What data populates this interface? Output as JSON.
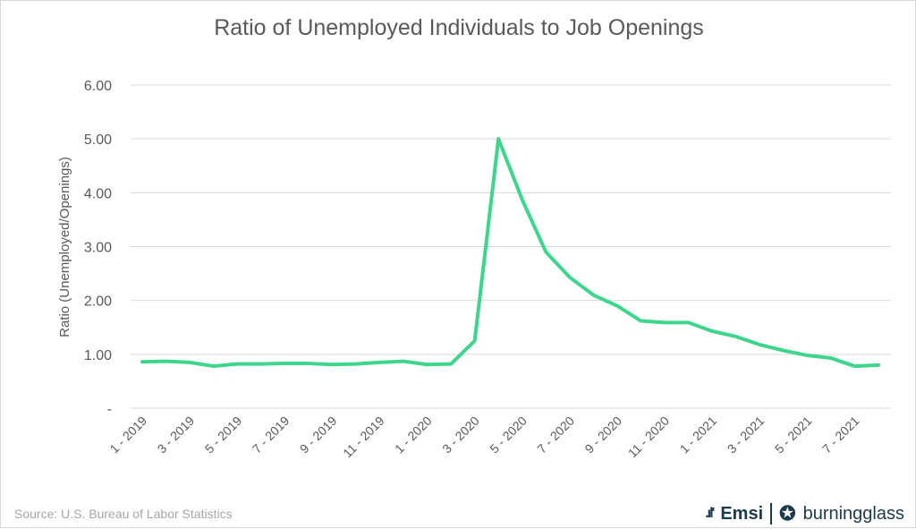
{
  "chart_data": {
    "type": "line",
    "title": "Ratio of Unemployed Individuals to Job Openings",
    "xlabel": "",
    "ylabel": "Ratio (Unemployed/Openings)",
    "ylim": [
      0,
      6
    ],
    "yticks": [
      "-",
      "1.00",
      "2.00",
      "3.00",
      "4.00",
      "5.00",
      "6.00"
    ],
    "grid": true,
    "x": [
      "1 - 2019",
      "2 - 2019",
      "3 - 2019",
      "4 - 2019",
      "5 - 2019",
      "6 - 2019",
      "7 - 2019",
      "8 - 2019",
      "9 - 2019",
      "10 - 2019",
      "11 - 2019",
      "12 - 2019",
      "1 - 2020",
      "2 - 2020",
      "3 - 2020",
      "4 - 2020",
      "5 - 2020",
      "6 - 2020",
      "7 - 2020",
      "8 - 2020",
      "9 - 2020",
      "10 - 2020",
      "11 - 2020",
      "12 - 2020",
      "1 - 2021",
      "2 - 2021",
      "3 - 2021",
      "4 - 2021",
      "5 - 2021",
      "6 - 2021",
      "7 - 2021",
      "8 - 2021"
    ],
    "xticks_shown": [
      "1 - 2019",
      "3 - 2019",
      "5 - 2019",
      "7 - 2019",
      "9 - 2019",
      "11 - 2019",
      "1 - 2020",
      "3 - 2020",
      "5 - 2020",
      "7 - 2020",
      "9 - 2020",
      "11 - 2020",
      "1 - 2021",
      "3 - 2021",
      "5 - 2021",
      "7 - 2021"
    ],
    "series": [
      {
        "name": "Ratio",
        "color": "#3dd68c",
        "values": [
          0.86,
          0.87,
          0.85,
          0.78,
          0.82,
          0.82,
          0.83,
          0.83,
          0.81,
          0.82,
          0.85,
          0.87,
          0.81,
          0.82,
          1.25,
          5.0,
          3.87,
          2.9,
          2.43,
          2.1,
          1.9,
          1.62,
          1.59,
          1.59,
          1.43,
          1.33,
          1.18,
          1.07,
          0.98,
          0.93,
          0.78,
          0.8
        ]
      }
    ]
  },
  "source": "Source:  U.S. Bureau of Labor Statistics",
  "logos": {
    "emsi": "Emsi",
    "burningglass": "burningglass"
  }
}
